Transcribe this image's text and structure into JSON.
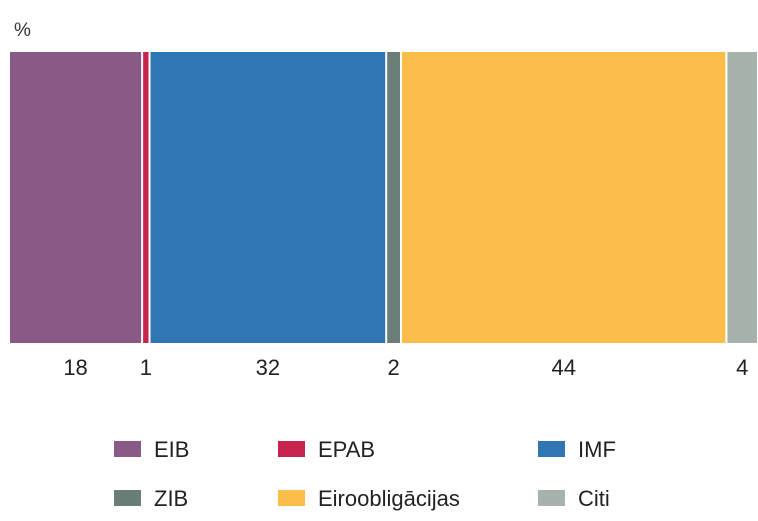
{
  "chart_data": {
    "type": "bar",
    "stacked": true,
    "orientation": "horizontal-100-percent",
    "unit": "%",
    "categories": [
      "EIB",
      "EPAB",
      "IMF",
      "ZIB",
      "Eiroobligācijas",
      "Citi"
    ],
    "values": [
      18,
      1,
      32,
      2,
      44,
      4
    ],
    "value_labels": [
      "18",
      "1",
      "32",
      "2",
      "44",
      "4"
    ],
    "colors": [
      "#8a5a87",
      "#c8224f",
      "#2f76b2",
      "#6b7d77",
      "#fcbd4b",
      "#a6b3ab"
    ],
    "legend": {
      "placement": "bottom",
      "columns": 3,
      "entries": [
        "EIB",
        "EPAB",
        "IMF",
        "ZIB",
        "Eiroobligācijas",
        "Citi"
      ]
    },
    "grid": false,
    "title": "",
    "xlabel": "",
    "ylabel": ""
  }
}
